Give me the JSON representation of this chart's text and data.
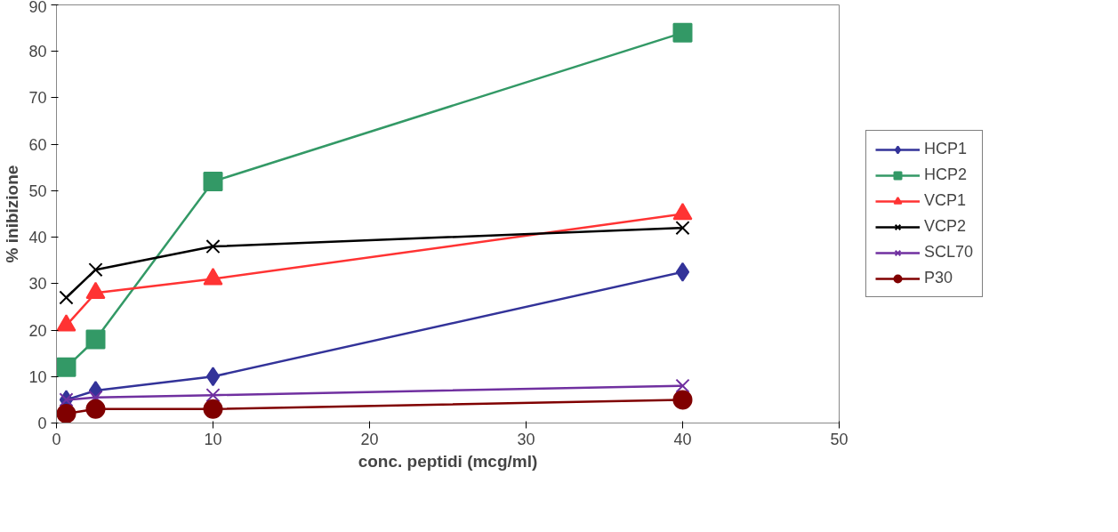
{
  "chart_data": {
    "type": "line",
    "xlabel": "conc. peptidi (mcg/ml)",
    "ylabel": "% inibizione",
    "x": [
      0.625,
      2.5,
      10,
      40
    ],
    "series": [
      {
        "name": "HCP1",
        "color": "#333399",
        "marker": "diamond",
        "values": [
          5,
          7,
          10,
          32.5
        ]
      },
      {
        "name": "HCP2",
        "color": "#339966",
        "marker": "square",
        "values": [
          12,
          18,
          52,
          84
        ]
      },
      {
        "name": "VCP1",
        "color": "#ff3333",
        "marker": "triangle",
        "values": [
          21,
          28,
          31,
          45
        ]
      },
      {
        "name": "VCP2",
        "color": "#000000",
        "marker": "cross",
        "values": [
          27,
          33,
          38,
          42
        ]
      },
      {
        "name": "SCL70",
        "color": "#7030a0",
        "marker": "cross",
        "values": [
          5,
          5.5,
          6,
          8
        ]
      },
      {
        "name": "P30",
        "color": "#800000",
        "marker": "circle",
        "values": [
          2,
          3,
          3,
          5
        ]
      }
    ],
    "xlim": [
      0,
      50
    ],
    "xticks": [
      0,
      10,
      20,
      30,
      40,
      50
    ],
    "ylim": [
      0,
      90
    ],
    "yticks": [
      0,
      10,
      20,
      30,
      40,
      50,
      60,
      70,
      80,
      90
    ],
    "grid": false,
    "legend": "right"
  }
}
